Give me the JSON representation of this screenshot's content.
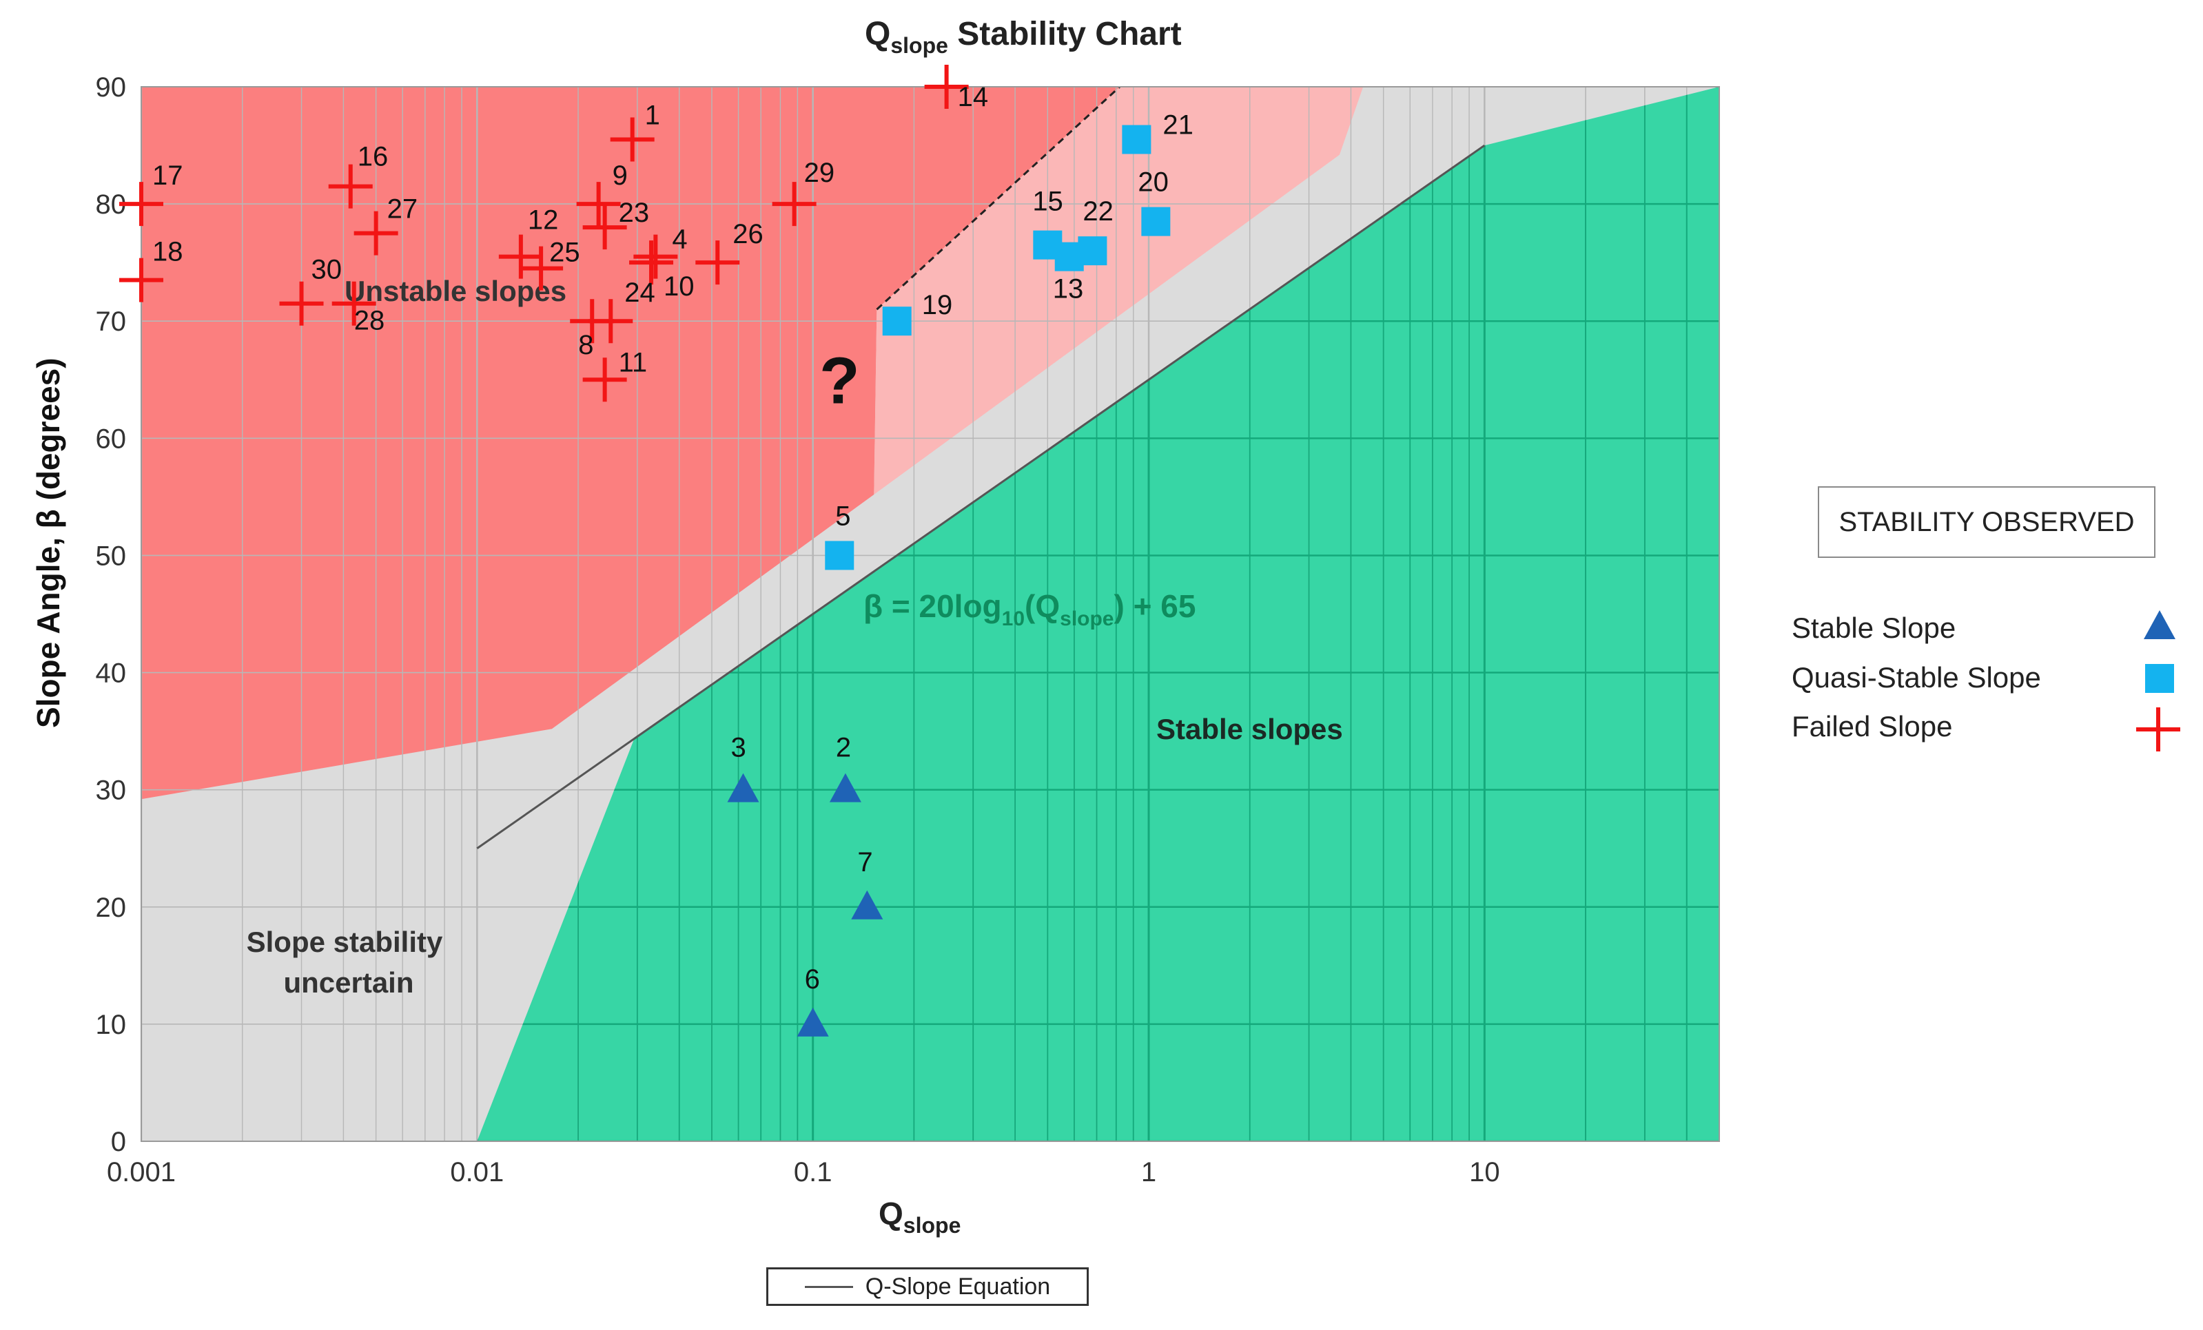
{
  "chart_data": {
    "type": "scatter",
    "title": "Q",
    "title_sub": "slope",
    "title_rest": " Stability Chart",
    "xlabel": "Q",
    "xlabel_sub": "slope",
    "ylabel": "Slope Angle, β (degrees)",
    "x_scale": "log",
    "xlim": [
      0.001,
      50
    ],
    "ylim": [
      0,
      90
    ],
    "x_ticks": [
      {
        "value": 0.001,
        "label": "0.001"
      },
      {
        "value": 0.01,
        "label": "0.01"
      },
      {
        "value": 0.1,
        "label": "0.1"
      },
      {
        "value": 1,
        "label": "1"
      },
      {
        "value": 10,
        "label": "10"
      }
    ],
    "y_ticks": [
      {
        "value": 0,
        "label": "0"
      },
      {
        "value": 10,
        "label": "10"
      },
      {
        "value": 20,
        "label": "20"
      },
      {
        "value": 30,
        "label": "30"
      },
      {
        "value": 40,
        "label": "40"
      },
      {
        "value": 50,
        "label": "50"
      },
      {
        "value": 60,
        "label": "60"
      },
      {
        "value": 70,
        "label": "70"
      },
      {
        "value": 80,
        "label": "80"
      },
      {
        "value": 90,
        "label": "90"
      }
    ],
    "colors": {
      "uncertain": "#dcdcdc",
      "unstable": "#fb7f7f",
      "quasi": "#fbb7b7",
      "stable": "#37d6a5",
      "grid_stable": "#14a97b",
      "grid_other": "#b7b7b7",
      "stable_marker": "#1f63b6",
      "quasi_marker": "#14b3ef",
      "failed_marker": "#f21515",
      "equation_text": "#0f8c5e"
    },
    "regions": {
      "unstable": {
        "label": "Unstable slopes",
        "boundary": [
          [
            0.001,
            29.2
          ],
          [
            0.0167,
            35.2
          ],
          [
            0.152,
            55.2
          ],
          [
            0.155,
            71
          ],
          [
            0.82,
            90
          ],
          [
            0.001,
            90
          ]
        ]
      },
      "quasi_stable": {
        "boundary": [
          [
            0.152,
            55.2
          ],
          [
            0.155,
            71
          ],
          [
            0.82,
            90
          ],
          [
            4.35,
            90
          ],
          [
            3.7,
            84.2
          ]
        ]
      },
      "quasi_dashed_edge": [
        [
          0.155,
          71
        ],
        [
          0.82,
          90
        ]
      ],
      "stable": {
        "label": "Stable slopes",
        "boundary": [
          [
            0.01,
            0
          ],
          [
            0.0295,
            34.5
          ],
          [
            10,
            85
          ],
          [
            50,
            90
          ],
          [
            50,
            0
          ]
        ]
      },
      "uncertain": {
        "label_line1": "Slope stability",
        "label_line2": "uncertain"
      }
    },
    "equation_line": {
      "label": "β = 20log",
      "label_sub": "10",
      "label_mid": "(Q",
      "label_sub2": "slope",
      "label_end": ") + 65",
      "from": [
        0.01,
        25
      ],
      "to": [
        50,
        98.98
      ]
    },
    "question_mark": {
      "text": "?",
      "x": 0.12,
      "y": 63
    },
    "series": [
      {
        "name": "Failed Slope",
        "marker": "plus",
        "points": [
          {
            "id": "1",
            "x": 0.029,
            "y": 85.5
          },
          {
            "id": "4",
            "x": 0.034,
            "y": 75.5
          },
          {
            "id": "8",
            "x": 0.022,
            "y": 70
          },
          {
            "id": "9",
            "x": 0.023,
            "y": 80
          },
          {
            "id": "10",
            "x": 0.033,
            "y": 75
          },
          {
            "id": "11",
            "x": 0.024,
            "y": 65
          },
          {
            "id": "12",
            "x": 0.0135,
            "y": 75.5
          },
          {
            "id": "14",
            "x": 0.25,
            "y": 90
          },
          {
            "id": "16",
            "x": 0.0042,
            "y": 81.5
          },
          {
            "id": "17",
            "x": 0.001,
            "y": 80
          },
          {
            "id": "18",
            "x": 0.001,
            "y": 73.5
          },
          {
            "id": "23",
            "x": 0.024,
            "y": 78
          },
          {
            "id": "24",
            "x": 0.025,
            "y": 70
          },
          {
            "id": "25",
            "x": 0.0155,
            "y": 74.5
          },
          {
            "id": "26",
            "x": 0.052,
            "y": 75
          },
          {
            "id": "27",
            "x": 0.005,
            "y": 77.5
          },
          {
            "id": "28",
            "x": 0.0043,
            "y": 71.5
          },
          {
            "id": "29",
            "x": 0.088,
            "y": 80
          },
          {
            "id": "30",
            "x": 0.003,
            "y": 71.5
          }
        ]
      },
      {
        "name": "Quasi-Stable Slope",
        "marker": "square",
        "points": [
          {
            "id": "5",
            "x": 0.12,
            "y": 50
          },
          {
            "id": "13",
            "x": 0.58,
            "y": 75.5
          },
          {
            "id": "15",
            "x": 0.5,
            "y": 76.5
          },
          {
            "id": "19",
            "x": 0.178,
            "y": 70
          },
          {
            "id": "20",
            "x": 1.05,
            "y": 78.5
          },
          {
            "id": "21",
            "x": 0.92,
            "y": 85.5
          },
          {
            "id": "22",
            "x": 0.68,
            "y": 76
          }
        ]
      },
      {
        "name": "Stable Slope",
        "marker": "triangle",
        "points": [
          {
            "id": "2",
            "x": 0.125,
            "y": 30
          },
          {
            "id": "3",
            "x": 0.062,
            "y": 30
          },
          {
            "id": "6",
            "x": 0.1,
            "y": 10
          },
          {
            "id": "7",
            "x": 0.145,
            "y": 20
          }
        ]
      }
    ],
    "point_label_offsets": {
      "1": [
        18,
        -22
      ],
      "4": [
        24,
        -12
      ],
      "8": [
        -20,
        48
      ],
      "9": [
        20,
        -28
      ],
      "10": [
        18,
        48
      ],
      "11": [
        20,
        -12
      ],
      "12": [
        10,
        -40
      ],
      "14": [
        16,
        28
      ],
      "16": [
        10,
        -30
      ],
      "17": [
        16,
        -28
      ],
      "18": [
        16,
        -28
      ],
      "23": [
        20,
        -8
      ],
      "24": [
        20,
        -28
      ],
      "25": [
        12,
        -10
      ],
      "26": [
        22,
        -28
      ],
      "27": [
        16,
        -22
      ],
      "28": [
        0,
        38
      ],
      "29": [
        14,
        -32
      ],
      "30": [
        14,
        -36
      ],
      "5": [
        -6,
        -44
      ],
      "13": [
        -24,
        60
      ],
      "15": [
        -22,
        -50
      ],
      "19": [
        36,
        -10
      ],
      "20": [
        -26,
        -44
      ],
      "21": [
        38,
        -8
      ],
      "22": [
        -14,
        -44
      ],
      "2": [
        -14,
        -48
      ],
      "3": [
        -18,
        -48
      ],
      "6": [
        -12,
        -52
      ],
      "7": [
        -14,
        -52
      ]
    },
    "legend": {
      "heading": "STABILITY OBSERVED",
      "items": [
        "Stable Slope",
        "Quasi-Stable Slope",
        "Failed Slope"
      ],
      "equation_legend": "Q-Slope Equation"
    }
  }
}
